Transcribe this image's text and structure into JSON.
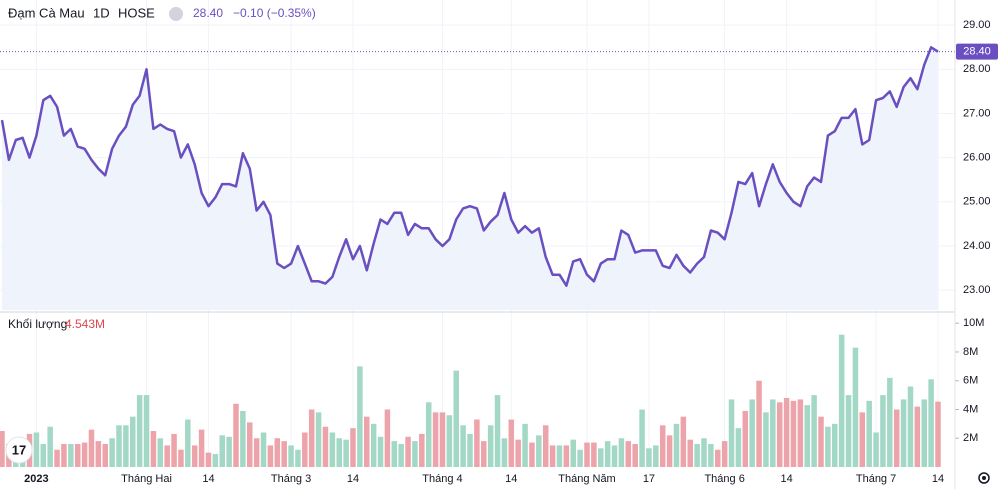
{
  "header": {
    "symbol": "Đạm Cà Mau",
    "interval": "1D",
    "exchange": "HOSE",
    "last": "28.40",
    "change": "−0.10 (−0.35%)"
  },
  "chart_data": [
    {
      "type": "area-line",
      "color": "#6a4fc1",
      "fill": "#eef3fc",
      "categories": [
        null,
        null,
        null,
        null,
        null,
        "2023",
        null,
        null,
        null,
        null,
        null,
        null,
        null,
        null,
        null,
        null,
        null,
        null,
        null,
        null,
        null,
        "Tháng Hai",
        null,
        null,
        null,
        null,
        null,
        null,
        null,
        null,
        "14",
        null,
        null,
        null,
        null,
        null,
        null,
        null,
        null,
        null,
        null,
        null,
        "Tháng 3",
        null,
        null,
        null,
        null,
        null,
        null,
        null,
        null,
        "14",
        null,
        null,
        null,
        null,
        null,
        null,
        null,
        null,
        null,
        null,
        null,
        null,
        "Tháng 4",
        null,
        null,
        null,
        null,
        null,
        null,
        null,
        null,
        null,
        "14",
        null,
        null,
        null,
        null,
        null,
        null,
        null,
        null,
        null,
        null,
        "Tháng Năm",
        null,
        null,
        null,
        null,
        null,
        null,
        null,
        null,
        "17",
        null,
        null,
        null,
        null,
        null,
        null,
        null,
        null,
        null,
        null,
        "Tháng 6",
        null,
        null,
        null,
        null,
        null,
        null,
        null,
        null,
        "14",
        null,
        null,
        null,
        null,
        null,
        null,
        null,
        null,
        null,
        null,
        null,
        null,
        "Tháng 7",
        null,
        null,
        null,
        null,
        null,
        null,
        null,
        null,
        "14"
      ],
      "values": [
        26.85,
        25.95,
        26.4,
        26.45,
        26.0,
        26.5,
        27.3,
        27.4,
        27.15,
        26.5,
        26.65,
        26.25,
        26.2,
        25.95,
        25.75,
        25.6,
        26.2,
        26.5,
        26.7,
        27.2,
        27.4,
        28.0,
        26.65,
        26.75,
        26.65,
        26.6,
        26.0,
        26.3,
        25.85,
        25.2,
        24.9,
        25.1,
        25.4,
        25.4,
        25.35,
        26.1,
        25.75,
        24.8,
        25.0,
        24.7,
        23.6,
        23.5,
        23.6,
        24.0,
        23.6,
        23.2,
        23.2,
        23.15,
        23.3,
        23.75,
        24.15,
        23.7,
        24.0,
        23.45,
        24.05,
        24.6,
        24.5,
        24.75,
        24.75,
        24.25,
        24.5,
        24.4,
        24.4,
        24.15,
        24.0,
        24.15,
        24.6,
        24.85,
        24.9,
        24.85,
        24.35,
        24.55,
        24.7,
        25.2,
        24.6,
        24.3,
        24.45,
        24.3,
        24.4,
        23.75,
        23.35,
        23.35,
        23.1,
        23.65,
        23.7,
        23.35,
        23.2,
        23.6,
        23.7,
        23.7,
        24.35,
        24.25,
        23.85,
        23.9,
        23.9,
        23.9,
        23.55,
        23.5,
        23.8,
        23.55,
        23.4,
        23.6,
        23.75,
        24.35,
        24.3,
        24.15,
        24.75,
        25.45,
        25.4,
        25.65,
        24.9,
        25.4,
        25.85,
        25.45,
        25.2,
        25.0,
        24.9,
        25.35,
        25.55,
        25.45,
        26.5,
        26.6,
        26.9,
        26.9,
        27.1,
        26.3,
        26.4,
        27.3,
        27.35,
        27.5,
        27.15,
        27.6,
        27.8,
        27.55,
        28.1,
        28.5,
        28.4
      ],
      "price_tag": "28.40",
      "ylim": [
        22.55,
        29.57
      ],
      "yticks": [
        {
          "value": 23,
          "label": "23.00"
        },
        {
          "value": 24,
          "label": "24.00"
        },
        {
          "value": 25,
          "label": "25.00"
        },
        {
          "value": 26,
          "label": "26.00"
        },
        {
          "value": 27,
          "label": "27.00"
        },
        {
          "value": 28,
          "label": "28.00"
        },
        {
          "value": 29,
          "label": "29.00"
        }
      ],
      "grid": true
    },
    {
      "type": "volume-bar",
      "title": "Khối lượng",
      "last_label": "4.543M",
      "up_color": "#a3d8c6",
      "down_color": "#eca3aa",
      "values": [
        2500000,
        1600000,
        1200000,
        1500000,
        2300000,
        2400000,
        1600000,
        2800000,
        1200000,
        1600000,
        1600000,
        1600000,
        1700000,
        2600000,
        1800000,
        1600000,
        2000000,
        2900000,
        2900000,
        3500000,
        5000000,
        5000000,
        2500000,
        2000000,
        1500000,
        2300000,
        1200000,
        3300000,
        1500000,
        2600000,
        1000000,
        900000,
        2200000,
        2100000,
        4400000,
        3900000,
        3100000,
        2000000,
        2400000,
        1500000,
        2000000,
        1800000,
        1500000,
        1200000,
        2400000,
        4000000,
        3800000,
        2800000,
        2400000,
        2000000,
        1900000,
        2700000,
        7000000,
        3500000,
        3000000,
        2100000,
        4000000,
        1800000,
        1600000,
        2100000,
        1800000,
        2300000,
        4500000,
        3800000,
        3800000,
        3600000,
        6700000,
        2900000,
        2300000,
        3300000,
        1800000,
        2900000,
        5000000,
        2000000,
        3300000,
        1900000,
        3000000,
        1700000,
        2200000,
        2900000,
        1500000,
        1500000,
        1500000,
        1900000,
        1200000,
        1700000,
        1700000,
        1300000,
        1800000,
        1500000,
        2000000,
        1800000,
        1600000,
        4000000,
        1300000,
        1500000,
        2900000,
        2200000,
        3000000,
        3500000,
        1900000,
        1600000,
        2000000,
        1600000,
        1200000,
        1800000,
        4700000,
        2700000,
        3900000,
        4700000,
        6000000,
        3800000,
        4700000,
        4500000,
        4800000,
        4600000,
        4700000,
        4300000,
        5000000,
        3500000,
        2800000,
        3000000,
        9200000,
        5000000,
        8300000,
        3800000,
        4600000,
        2400000,
        5000000,
        6200000,
        4000000,
        4700000,
        5600000,
        4200000,
        4700000,
        6100000,
        4543000
      ],
      "ylim": [
        0,
        10570000
      ],
      "yticks": [
        {
          "value": 2000000,
          "label": "2M"
        },
        {
          "value": 4000000,
          "label": "4M"
        },
        {
          "value": 6000000,
          "label": "6M"
        },
        {
          "value": 8000000,
          "label": "8M"
        },
        {
          "value": 10000000,
          "label": "10M"
        }
      ]
    }
  ]
}
